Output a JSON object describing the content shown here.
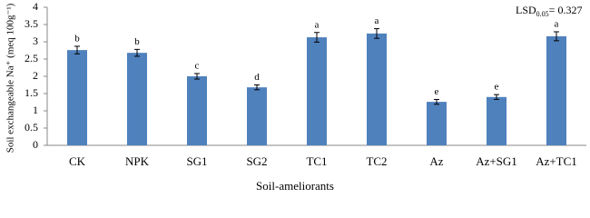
{
  "chart_data": {
    "type": "bar",
    "x_label": "Soil-ameliorants",
    "y_label": "Soil exchangeable Na⁺ (meq 100g⁻¹)",
    "annotation": {
      "text": "LSD",
      "subscript": "0.05",
      "value_text": "= 0.327"
    },
    "categories": [
      "CK",
      "NPK",
      "SG1",
      "SG2",
      "TC1",
      "TC2",
      "Az",
      "Az+SG1",
      "Az+TC1"
    ],
    "series": [
      {
        "name": "Soil exchangeable Na",
        "color": "#4f81bd",
        "values": [
          2.76,
          2.68,
          2.0,
          1.68,
          3.13,
          3.24,
          1.26,
          1.4,
          3.16
        ],
        "errors": [
          0.11,
          0.1,
          0.08,
          0.07,
          0.14,
          0.14,
          0.07,
          0.07,
          0.13
        ],
        "letters": [
          "b",
          "b",
          "c",
          "d",
          "a",
          "a",
          "e",
          "e",
          "a"
        ]
      }
    ],
    "ylim": [
      0,
      4
    ],
    "yticks": [
      0,
      0.5,
      1,
      1.5,
      2,
      2.5,
      3,
      3.5,
      4
    ],
    "grid": false
  }
}
